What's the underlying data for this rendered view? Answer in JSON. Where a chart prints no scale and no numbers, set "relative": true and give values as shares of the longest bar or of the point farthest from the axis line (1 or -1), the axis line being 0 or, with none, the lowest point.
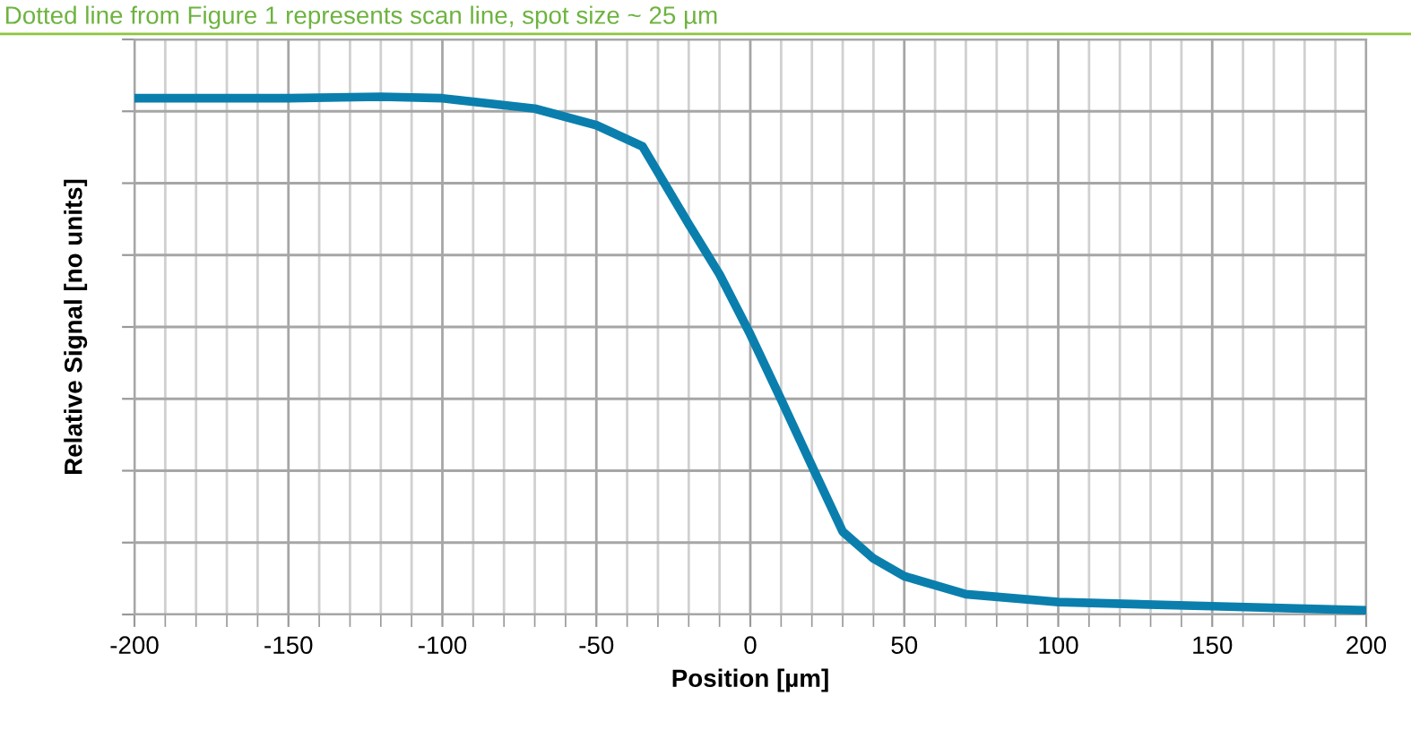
{
  "chart_data": {
    "type": "line",
    "xlabel": "Position [µm]",
    "ylabel": "Relative Signal [no units]",
    "annotations": [
      "Dotted line from Figure 1 represents scan line, spot size ~ 25 µm"
    ],
    "relative": true,
    "x": [
      -200,
      -150,
      -120,
      -100,
      -70,
      -50,
      -35,
      -20,
      -10,
      0,
      10,
      20,
      30,
      40,
      50,
      70,
      100,
      150,
      200
    ],
    "series": [
      {
        "color": "#0a7fad",
        "values": [
          0.997,
          0.997,
          1.0,
          0.997,
          0.977,
          0.945,
          0.904,
          0.754,
          0.657,
          0.541,
          0.415,
          0.287,
          0.16,
          0.108,
          0.074,
          0.039,
          0.024,
          0.016,
          0.008
        ]
      }
    ],
    "xlim": [
      -200,
      200
    ],
    "xticks": [
      -200,
      -150,
      -100,
      -50,
      0,
      50,
      100,
      150,
      200
    ],
    "grid": true,
    "marker": "none",
    "line_style": "solid"
  }
}
